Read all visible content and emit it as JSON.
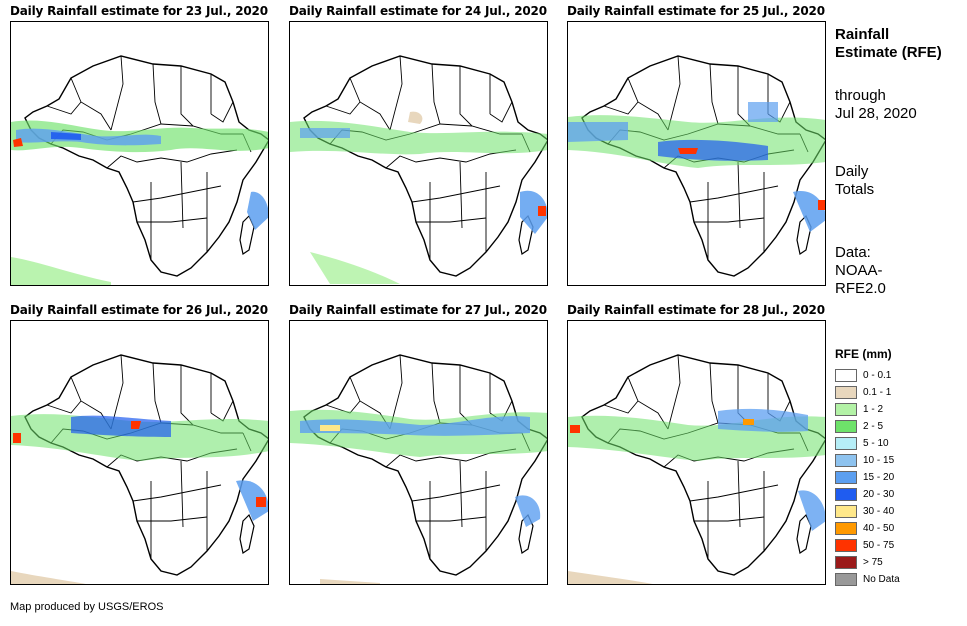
{
  "panels": [
    {
      "title": "Daily Rainfall estimate for 23 Jul., 2020"
    },
    {
      "title": "Daily Rainfall estimate for 24 Jul., 2020"
    },
    {
      "title": "Daily Rainfall estimate for 25 Jul., 2020"
    },
    {
      "title": "Daily Rainfall estimate for 26 Jul., 2020"
    },
    {
      "title": "Daily Rainfall estimate for 27 Jul., 2020"
    },
    {
      "title": "Daily Rainfall estimate for 28 Jul., 2020"
    }
  ],
  "sidebar": {
    "title": "Rainfall Estimate (RFE)",
    "through_line1": "through",
    "through_line2": "Jul 28, 2020",
    "daily_line1": "Daily",
    "daily_line2": "Totals",
    "data_line1": "Data:",
    "data_line2": "NOAA-",
    "data_line3": "RFE2.0"
  },
  "legend": {
    "title": "RFE (mm)",
    "items": [
      {
        "label": "0 - 0.1",
        "color": "#ffffff"
      },
      {
        "label": "0.1 - 1",
        "color": "#e8d7bd"
      },
      {
        "label": "1 - 2",
        "color": "#b3f2a6"
      },
      {
        "label": "2 - 5",
        "color": "#6ee26a"
      },
      {
        "label": "5 - 10",
        "color": "#b6eef7"
      },
      {
        "label": "10 - 15",
        "color": "#8ec3ef"
      },
      {
        "label": "15 - 20",
        "color": "#5c9ff0"
      },
      {
        "label": "20 - 30",
        "color": "#1f5cf0"
      },
      {
        "label": "30 - 40",
        "color": "#ffe88a"
      },
      {
        "label": "40 - 50",
        "color": "#ff9900"
      },
      {
        "label": "50 - 75",
        "color": "#ff3300"
      },
      {
        "label": "> 75",
        "color": "#9b1a1a"
      },
      {
        "label": "No Data",
        "color": "#999999"
      }
    ]
  },
  "footer": "Map produced by USGS/EROS"
}
